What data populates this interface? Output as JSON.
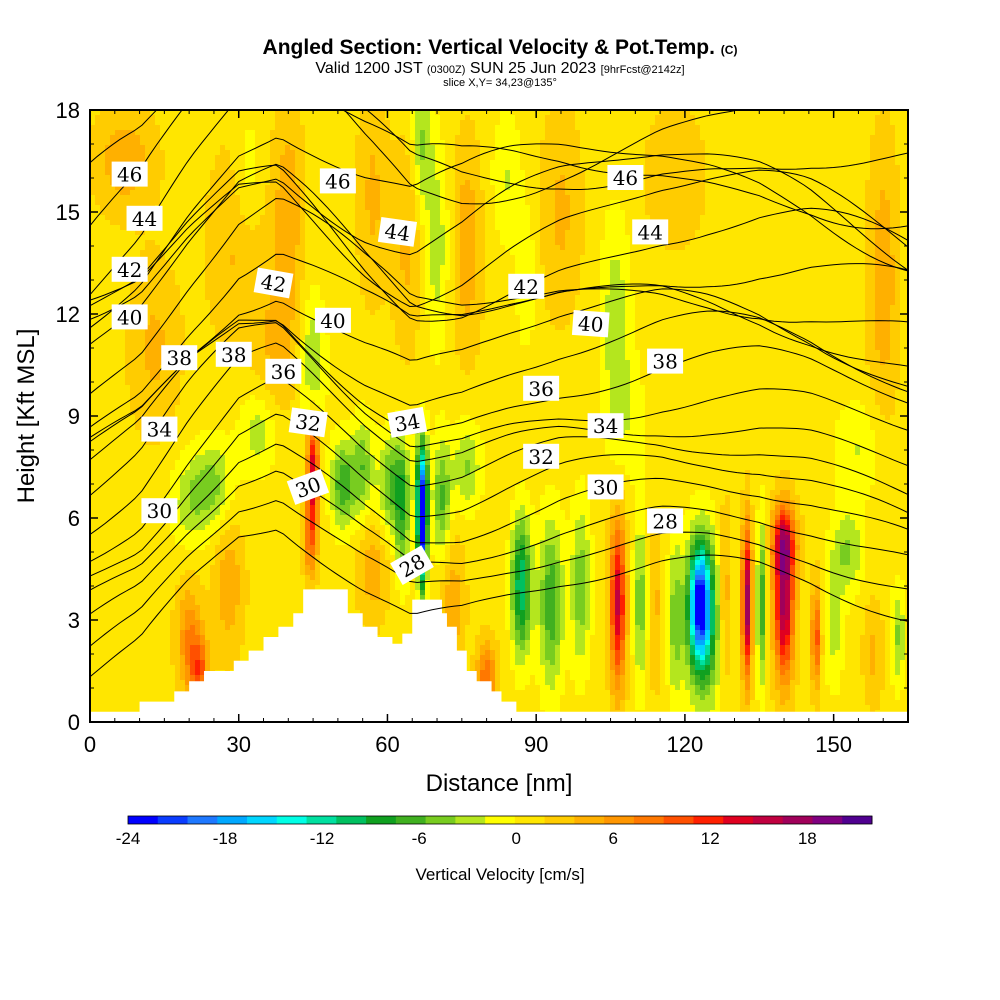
{
  "title": {
    "main": "Angled Section: Vertical Velocity & Pot.Temp.",
    "copyright": "(C)",
    "valid_prefix": "Valid 1200 JST",
    "valid_zulu": "(0300Z)",
    "valid_date": "SUN 25 Jun 2023",
    "forecast": "[9hrFcst@2142z]",
    "slice": "slice X,Y= 34,23@135°"
  },
  "chart_data": {
    "type": "heatmap",
    "xlabel": "Distance [nm]",
    "ylabel": "Height [Kft MSL]",
    "xlim": [
      0,
      165
    ],
    "ylim": [
      0,
      18
    ],
    "x_ticks": [
      "0",
      "30",
      "60",
      "90",
      "120",
      "150"
    ],
    "y_ticks": [
      "0",
      "3",
      "6",
      "9",
      "12",
      "15",
      "18"
    ],
    "colorbar": {
      "label": "Vertical Velocity [cm/s]",
      "ticks": [
        "-24",
        "-18",
        "-12",
        "-6",
        "0",
        "6",
        "12",
        "18"
      ],
      "range": [
        -24,
        22
      ],
      "colors": [
        "#0000ff",
        "#0a3cff",
        "#1e78ff",
        "#00a8ff",
        "#00d6ff",
        "#00ffe6",
        "#00e0a0",
        "#00c060",
        "#10a020",
        "#40b020",
        "#78cc20",
        "#b4e61e",
        "#ffff00",
        "#ffe600",
        "#ffcc00",
        "#ffb000",
        "#ff9600",
        "#ff7800",
        "#ff5000",
        "#ff2000",
        "#e00020",
        "#c00040",
        "#a0005a",
        "#800080",
        "#500090"
      ]
    },
    "background_value": 1,
    "w_features": [
      {
        "x": 7,
        "z": 16.5,
        "w": 4,
        "sx": 6,
        "sz": 1.5
      },
      {
        "x": 13,
        "z": 11,
        "w": 3,
        "sx": 5,
        "sz": 2.5
      },
      {
        "x": 30,
        "z": 14,
        "w": 3,
        "sx": 6,
        "sz": 3
      },
      {
        "x": 32,
        "z": 16,
        "w": -3,
        "sx": 3,
        "sz": 2
      },
      {
        "x": 40,
        "z": 15,
        "w": 4,
        "sx": 3,
        "sz": 3
      },
      {
        "x": 38,
        "z": 11,
        "w": 3,
        "sx": 4,
        "sz": 2
      },
      {
        "x": 45,
        "z": 10.5,
        "w": -5,
        "sx": 2.5,
        "sz": 2
      },
      {
        "x": 57,
        "z": 15.5,
        "w": 3,
        "sx": 3,
        "sz": 3
      },
      {
        "x": 64,
        "z": 14,
        "w": 3,
        "sx": 3,
        "sz": 3
      },
      {
        "x": 67,
        "z": 17,
        "w": -5,
        "sx": 2,
        "sz": 2
      },
      {
        "x": 70,
        "z": 14,
        "w": -4,
        "sx": 2.5,
        "sz": 3
      },
      {
        "x": 76,
        "z": 14,
        "w": 4,
        "sx": 3,
        "sz": 3
      },
      {
        "x": 84,
        "z": 16,
        "w": -3,
        "sx": 3,
        "sz": 2
      },
      {
        "x": 88,
        "z": 13,
        "w": -3,
        "sx": 2,
        "sz": 2
      },
      {
        "x": 95,
        "z": 15,
        "w": 3,
        "sx": 4,
        "sz": 3
      },
      {
        "x": 106,
        "z": 12,
        "w": -4,
        "sx": 3,
        "sz": 3
      },
      {
        "x": 108,
        "z": 9,
        "w": -2.5,
        "sx": 4,
        "sz": 2
      },
      {
        "x": 118,
        "z": 16,
        "w": 2.5,
        "sx": 6,
        "sz": 2
      },
      {
        "x": 160,
        "z": 13,
        "w": 4,
        "sx": 3,
        "sz": 4
      },
      {
        "x": 155,
        "z": 8,
        "w": -3,
        "sx": 5,
        "sz": 1.5
      },
      {
        "x": 20,
        "z": 6.5,
        "w": -4,
        "sx": 4,
        "sz": 1.3
      },
      {
        "x": 25,
        "z": 7,
        "w": -5,
        "sx": 4,
        "sz": 1.3
      },
      {
        "x": 34,
        "z": 8.5,
        "w": -4,
        "sx": 4,
        "sz": 1.2
      },
      {
        "x": 28,
        "z": 4,
        "w": 4,
        "sx": 3,
        "sz": 2
      },
      {
        "x": 20,
        "z": 2.5,
        "w": 6,
        "sx": 2.5,
        "sz": 1.5
      },
      {
        "x": 22,
        "z": 1.5,
        "w": 8,
        "sx": 2,
        "sz": 1
      },
      {
        "x": 45,
        "z": 7.5,
        "w": 13,
        "sx": 1.2,
        "sz": 1.5
      },
      {
        "x": 44.5,
        "z": 5.5,
        "w": 8,
        "sx": 1.3,
        "sz": 1.3
      },
      {
        "x": 51,
        "z": 7,
        "w": -8,
        "sx": 2.5,
        "sz": 1.3
      },
      {
        "x": 55,
        "z": 7.5,
        "w": -6,
        "sx": 2,
        "sz": 1.5
      },
      {
        "x": 61,
        "z": 7,
        "w": -7,
        "sx": 3,
        "sz": 1.5
      },
      {
        "x": 57,
        "z": 4.5,
        "w": 4,
        "sx": 3,
        "sz": 1.5
      },
      {
        "x": 63,
        "z": 6,
        "w": -6,
        "sx": 1.5,
        "sz": 2
      },
      {
        "x": 67,
        "z": 5.5,
        "w": -21,
        "sx": 0.9,
        "sz": 1.6
      },
      {
        "x": 67,
        "z": 7,
        "w": -14,
        "sx": 1.2,
        "sz": 1.5
      },
      {
        "x": 71,
        "z": 6.5,
        "w": -7,
        "sx": 1.8,
        "sz": 1.8
      },
      {
        "x": 76,
        "z": 7.5,
        "w": -5,
        "sx": 3,
        "sz": 1.3
      },
      {
        "x": 73,
        "z": 3.5,
        "w": 4,
        "sx": 2.5,
        "sz": 2
      },
      {
        "x": 80,
        "z": 1.3,
        "w": 8,
        "sx": 2,
        "sz": 1
      },
      {
        "x": 87,
        "z": 4,
        "w": -12,
        "sx": 2,
        "sz": 2
      },
      {
        "x": 93,
        "z": 3.5,
        "w": -8,
        "sx": 2.5,
        "sz": 2.5
      },
      {
        "x": 99,
        "z": 4,
        "w": -6,
        "sx": 2,
        "sz": 2.5
      },
      {
        "x": 106.5,
        "z": 3.5,
        "w": 14,
        "sx": 1.6,
        "sz": 2.4
      },
      {
        "x": 111,
        "z": 3.5,
        "w": -6,
        "sx": 1.5,
        "sz": 2.5
      },
      {
        "x": 114,
        "z": 3.5,
        "w": 3,
        "sx": 1.5,
        "sz": 2.5
      },
      {
        "x": 118,
        "z": 3,
        "w": -5,
        "sx": 1.5,
        "sz": 2.5
      },
      {
        "x": 123,
        "z": 3.5,
        "w": -18,
        "sx": 2,
        "sz": 1.6
      },
      {
        "x": 124,
        "z": 3,
        "w": -10,
        "sx": 4,
        "sz": 2.5
      },
      {
        "x": 128,
        "z": 3.5,
        "w": 6,
        "sx": 1.5,
        "sz": 2.5
      },
      {
        "x": 132.5,
        "z": 3.5,
        "w": 17,
        "sx": 1,
        "sz": 2.2
      },
      {
        "x": 135.5,
        "z": 3.5,
        "w": -8,
        "sx": 1,
        "sz": 2.5
      },
      {
        "x": 140,
        "z": 3.5,
        "w": 16,
        "sx": 2,
        "sz": 2.2
      },
      {
        "x": 140,
        "z": 5.3,
        "w": 10,
        "sx": 2.5,
        "sz": 1
      },
      {
        "x": 146.5,
        "z": 2.5,
        "w": 9,
        "sx": 1,
        "sz": 1.5
      },
      {
        "x": 150,
        "z": 3,
        "w": -4,
        "sx": 2,
        "sz": 2
      },
      {
        "x": 153,
        "z": 5,
        "w": -5,
        "sx": 3,
        "sz": 1.2
      },
      {
        "x": 158,
        "z": 2,
        "w": 3,
        "sx": 2,
        "sz": 1.5
      },
      {
        "x": 163,
        "z": 2.5,
        "w": -5,
        "sx": 1.5,
        "sz": 1.5
      }
    ],
    "terrain": [
      {
        "x": 0,
        "z": 0.3
      },
      {
        "x": 10,
        "z": 0.3
      },
      {
        "x": 10,
        "z": 0.6
      },
      {
        "x": 17,
        "z": 0.6
      },
      {
        "x": 17,
        "z": 0.9
      },
      {
        "x": 20,
        "z": 0.9
      },
      {
        "x": 20,
        "z": 1.2
      },
      {
        "x": 23,
        "z": 1.2
      },
      {
        "x": 23,
        "z": 1.5
      },
      {
        "x": 29,
        "z": 1.5
      },
      {
        "x": 29,
        "z": 1.8
      },
      {
        "x": 32,
        "z": 1.8
      },
      {
        "x": 32,
        "z": 2.1
      },
      {
        "x": 35,
        "z": 2.1
      },
      {
        "x": 35,
        "z": 2.5
      },
      {
        "x": 38,
        "z": 2.5
      },
      {
        "x": 38,
        "z": 2.8
      },
      {
        "x": 41,
        "z": 2.8
      },
      {
        "x": 41,
        "z": 3.2
      },
      {
        "x": 43,
        "z": 3.2
      },
      {
        "x": 43,
        "z": 3.9
      },
      {
        "x": 52,
        "z": 3.9
      },
      {
        "x": 52,
        "z": 3.2
      },
      {
        "x": 55,
        "z": 3.2
      },
      {
        "x": 55,
        "z": 2.8
      },
      {
        "x": 58,
        "z": 2.8
      },
      {
        "x": 58,
        "z": 2.5
      },
      {
        "x": 61,
        "z": 2.5
      },
      {
        "x": 61,
        "z": 2.3
      },
      {
        "x": 63,
        "z": 2.3
      },
      {
        "x": 63,
        "z": 2.6
      },
      {
        "x": 65,
        "z": 2.6
      },
      {
        "x": 65,
        "z": 3.6
      },
      {
        "x": 71,
        "z": 3.6
      },
      {
        "x": 71,
        "z": 3.2
      },
      {
        "x": 72,
        "z": 3.2
      },
      {
        "x": 72,
        "z": 2.8
      },
      {
        "x": 74,
        "z": 2.8
      },
      {
        "x": 74,
        "z": 2.1
      },
      {
        "x": 76,
        "z": 2.1
      },
      {
        "x": 76,
        "z": 1.5
      },
      {
        "x": 78,
        "z": 1.5
      },
      {
        "x": 78,
        "z": 1.2
      },
      {
        "x": 81,
        "z": 1.2
      },
      {
        "x": 81,
        "z": 0.9
      },
      {
        "x": 83,
        "z": 0.9
      },
      {
        "x": 83,
        "z": 0.6
      },
      {
        "x": 86,
        "z": 0.6
      },
      {
        "x": 86,
        "z": 0.3
      },
      {
        "x": 165,
        "z": 0.3
      }
    ],
    "theta_levels": [
      27,
      28,
      29,
      30,
      31,
      32,
      33,
      34,
      35,
      36,
      37,
      38,
      39,
      40,
      41,
      42,
      43,
      44,
      45,
      46,
      47
    ],
    "theta_shape": [
      {
        "x": 0,
        "z": 2.5
      },
      {
        "x": 10,
        "z": 3.5
      },
      {
        "x": 20,
        "z": 5.3
      },
      {
        "x": 30,
        "z": 6.8
      },
      {
        "x": 38,
        "z": 7.2
      },
      {
        "x": 45,
        "z": 6.4
      },
      {
        "x": 55,
        "z": 5.2
      },
      {
        "x": 65,
        "z": 4.2
      },
      {
        "x": 75,
        "z": 4.4
      },
      {
        "x": 85,
        "z": 4.9
      },
      {
        "x": 95,
        "z": 5.3
      },
      {
        "x": 105,
        "z": 5.5
      },
      {
        "x": 115,
        "z": 5.7
      },
      {
        "x": 125,
        "z": 5.7
      },
      {
        "x": 135,
        "z": 5.6
      },
      {
        "x": 145,
        "z": 5.3
      },
      {
        "x": 155,
        "z": 4.8
      },
      {
        "x": 165,
        "z": 4.3
      }
    ],
    "contour_labels": [
      {
        "text": "46",
        "x": 8,
        "z": 16.1,
        "rot": 0
      },
      {
        "text": "44",
        "x": 11,
        "z": 14.8,
        "rot": 0
      },
      {
        "text": "42",
        "x": 8,
        "z": 13.3,
        "rot": 0
      },
      {
        "text": "40",
        "x": 8,
        "z": 11.9,
        "rot": 0
      },
      {
        "text": "38",
        "x": 18,
        "z": 10.7,
        "rot": 0
      },
      {
        "text": "38",
        "x": 29,
        "z": 10.8,
        "rot": 0
      },
      {
        "text": "34",
        "x": 14,
        "z": 8.6,
        "rot": 0
      },
      {
        "text": "30",
        "x": 14,
        "z": 6.2,
        "rot": 0
      },
      {
        "text": "46",
        "x": 50,
        "z": 15.9,
        "rot": 0
      },
      {
        "text": "44",
        "x": 62,
        "z": 14.4,
        "rot": 8
      },
      {
        "text": "42",
        "x": 37,
        "z": 12.9,
        "rot": 10
      },
      {
        "text": "40",
        "x": 49,
        "z": 11.8,
        "rot": 0
      },
      {
        "text": "36",
        "x": 39,
        "z": 10.3,
        "rot": 0
      },
      {
        "text": "32",
        "x": 44,
        "z": 8.8,
        "rot": 8
      },
      {
        "text": "34",
        "x": 64,
        "z": 8.8,
        "rot": -10
      },
      {
        "text": "30",
        "x": 44,
        "z": 6.9,
        "rot": -20
      },
      {
        "text": "28",
        "x": 65,
        "z": 4.6,
        "rot": -30
      },
      {
        "text": "42",
        "x": 88,
        "z": 12.8,
        "rot": 0
      },
      {
        "text": "40",
        "x": 101,
        "z": 11.7,
        "rot": 4
      },
      {
        "text": "36",
        "x": 91,
        "z": 9.8,
        "rot": 0
      },
      {
        "text": "32",
        "x": 91,
        "z": 7.8,
        "rot": 0
      },
      {
        "text": "34",
        "x": 104,
        "z": 8.7,
        "rot": 0
      },
      {
        "text": "30",
        "x": 104,
        "z": 6.9,
        "rot": 0
      },
      {
        "text": "28",
        "x": 116,
        "z": 5.9,
        "rot": 0
      },
      {
        "text": "46",
        "x": 108,
        "z": 16,
        "rot": 0
      },
      {
        "text": "44",
        "x": 113,
        "z": 14.4,
        "rot": 0
      },
      {
        "text": "38",
        "x": 116,
        "z": 10.6,
        "rot": 0
      }
    ]
  }
}
